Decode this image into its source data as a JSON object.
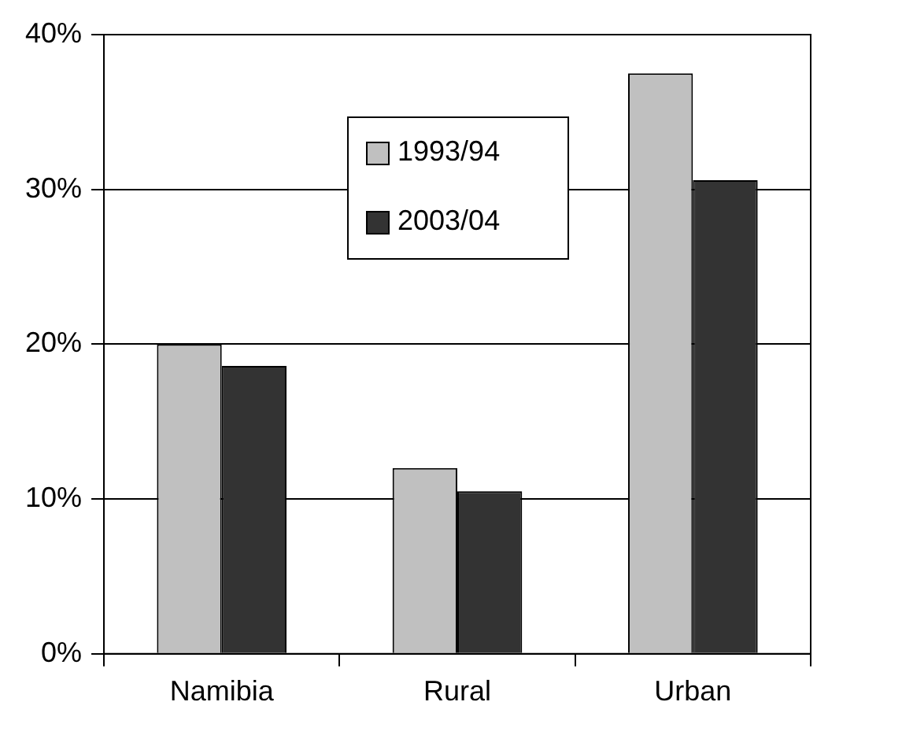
{
  "chart_data": {
    "type": "bar",
    "categories": [
      "Namibia",
      "Rural",
      "Urban"
    ],
    "series": [
      {
        "name": "1993/94",
        "color": "#c0c0c0",
        "values": [
          20,
          12,
          37.5
        ]
      },
      {
        "name": "2003/04",
        "color": "#333333",
        "values": [
          18.6,
          10.5,
          30.6
        ]
      }
    ],
    "ylim": [
      0,
      40
    ],
    "yticks": [
      {
        "value": 0,
        "label": "0%"
      },
      {
        "value": 10,
        "label": "10%"
      },
      {
        "value": 20,
        "label": "20%"
      },
      {
        "value": 30,
        "label": "30%"
      },
      {
        "value": 40,
        "label": "40%"
      }
    ],
    "grid": "y",
    "legend": "top"
  }
}
